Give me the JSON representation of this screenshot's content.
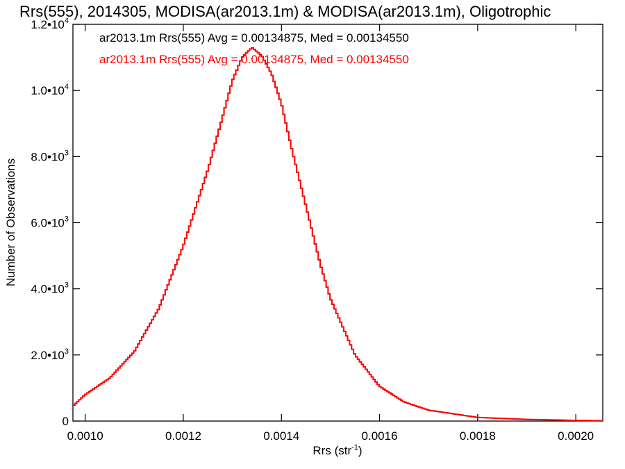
{
  "chart_data": {
    "type": "histogram-step",
    "title": "Rrs(555), 2014305, MODISA(ar2013.1m) & MODISA(ar2013.1m), Oligotrophic",
    "xlabel": "Rrs (str",
    "xlabel_sup": "-1",
    "xlabel_close": ")",
    "ylabel": "Number of Observations",
    "xlim": [
      0.000975,
      0.002055
    ],
    "ylim": [
      0,
      12000
    ],
    "x_ticks": [
      {
        "value": 0.001,
        "label": "0.0010"
      },
      {
        "value": 0.0012,
        "label": "0.0012"
      },
      {
        "value": 0.0014,
        "label": "0.0014"
      },
      {
        "value": 0.0016,
        "label": "0.0016"
      },
      {
        "value": 0.0018,
        "label": "0.0018"
      },
      {
        "value": 0.002,
        "label": "0.0020"
      }
    ],
    "y_ticks": [
      {
        "value": 0,
        "base": "0",
        "exp": ""
      },
      {
        "value": 2000,
        "base": "2.0•10",
        "exp": "3"
      },
      {
        "value": 4000,
        "base": "4.0•10",
        "exp": "3"
      },
      {
        "value": 6000,
        "base": "6.0•10",
        "exp": "3"
      },
      {
        "value": 8000,
        "base": "8.0•10",
        "exp": "3"
      },
      {
        "value": 10000,
        "base": "1.0•10",
        "exp": "4"
      },
      {
        "value": 12000,
        "base": "1.2•10",
        "exp": "4"
      }
    ],
    "series": [
      {
        "label": "ar2013.1m Rrs(555) Avg = 0.00134875, Med = 0.00134550",
        "color": "#000000"
      },
      {
        "label": "ar2013.1m Rrs(555) Avg = 0.00134875, Med = 0.00134550",
        "color": "#ff0000"
      }
    ],
    "curve_points": [
      [
        0.000975,
        450
      ],
      [
        0.001,
        800
      ],
      [
        0.00105,
        1300
      ],
      [
        0.0011,
        2100
      ],
      [
        0.00115,
        3400
      ],
      [
        0.0012,
        5300
      ],
      [
        0.00125,
        7600
      ],
      [
        0.00128,
        9200
      ],
      [
        0.0013,
        10300
      ],
      [
        0.00132,
        11000
      ],
      [
        0.00134,
        11300
      ],
      [
        0.00136,
        11050
      ],
      [
        0.00138,
        10500
      ],
      [
        0.0014,
        9600
      ],
      [
        0.00142,
        8300
      ],
      [
        0.00145,
        6500
      ],
      [
        0.00148,
        4700
      ],
      [
        0.0015,
        3700
      ],
      [
        0.00155,
        2000
      ],
      [
        0.0016,
        1050
      ],
      [
        0.00165,
        580
      ],
      [
        0.0017,
        330
      ],
      [
        0.0018,
        110
      ],
      [
        0.0019,
        50
      ],
      [
        0.002,
        20
      ],
      [
        0.002055,
        10
      ]
    ]
  }
}
